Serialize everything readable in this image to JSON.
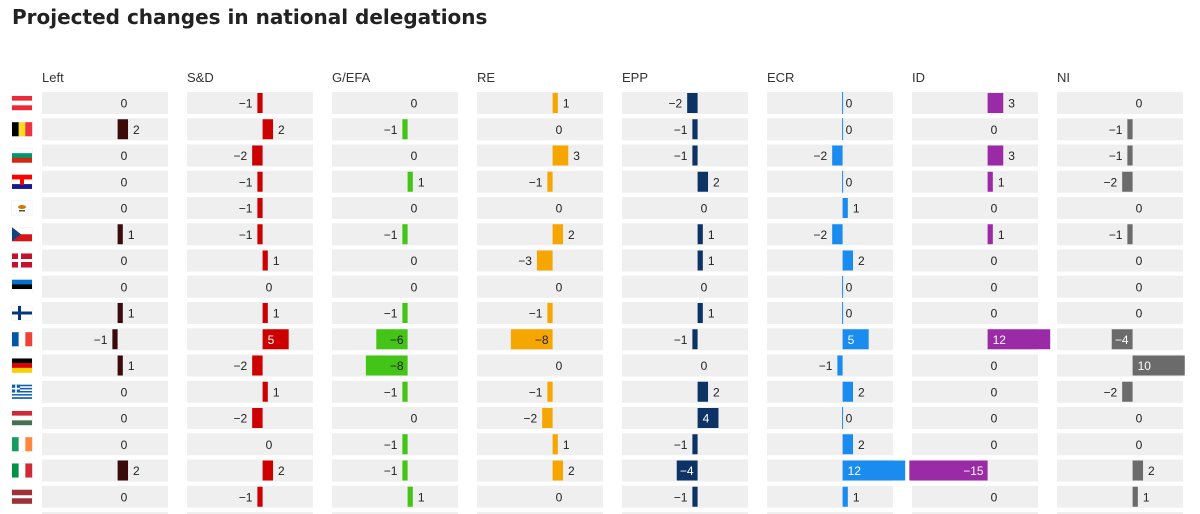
{
  "title": "Projected changes in national delegations",
  "chart_data": {
    "type": "bar",
    "title": "Projected changes in national delegations",
    "groups": [
      "Left",
      "S&D",
      "G/EFA",
      "RE",
      "EPP",
      "ECR",
      "ID",
      "NI"
    ],
    "group_colors": [
      "#3b0a0a",
      "#cc0000",
      "#44c416",
      "#f5a600",
      "#0d3366",
      "#1a8cf0",
      "#9b2aa6",
      "#6b6b6b"
    ],
    "countries": [
      "Austria",
      "Belgium",
      "Bulgaria",
      "Croatia",
      "Cyprus",
      "Czechia",
      "Denmark",
      "Estonia",
      "Finland",
      "France",
      "Germany",
      "Greece",
      "Hungary",
      "Ireland",
      "Italy",
      "Latvia"
    ],
    "values": [
      [
        0,
        -1,
        0,
        1,
        -2,
        0,
        3,
        0
      ],
      [
        2,
        2,
        -1,
        0,
        -1,
        0,
        0,
        -1
      ],
      [
        0,
        -2,
        0,
        3,
        -1,
        -2,
        3,
        -1
      ],
      [
        0,
        -1,
        1,
        -1,
        2,
        0,
        1,
        -2
      ],
      [
        0,
        -1,
        0,
        0,
        0,
        1,
        0,
        0
      ],
      [
        1,
        -1,
        -1,
        2,
        1,
        -2,
        1,
        -1
      ],
      [
        0,
        1,
        0,
        -3,
        1,
        2,
        0,
        0
      ],
      [
        0,
        0,
        0,
        0,
        0,
        0,
        0,
        0
      ],
      [
        1,
        1,
        -1,
        -1,
        1,
        0,
        0,
        0
      ],
      [
        -1,
        5,
        -6,
        -8,
        -1,
        5,
        12,
        -4
      ],
      [
        1,
        -2,
        -8,
        0,
        0,
        -1,
        0,
        10
      ],
      [
        0,
        1,
        -1,
        -1,
        2,
        2,
        0,
        -2
      ],
      [
        0,
        -2,
        0,
        -2,
        4,
        0,
        0,
        0
      ],
      [
        0,
        0,
        -1,
        1,
        -1,
        2,
        0,
        0
      ],
      [
        2,
        2,
        -1,
        2,
        -4,
        12,
        -15,
        2
      ],
      [
        0,
        -1,
        1,
        0,
        -1,
        1,
        0,
        1
      ]
    ],
    "labels": [
      [
        "0",
        "−1",
        "0",
        "1",
        "−2",
        "0",
        "3",
        "0"
      ],
      [
        "2",
        "2",
        "−1",
        "0",
        "−1",
        "0",
        "0",
        "−1"
      ],
      [
        "0",
        "−2",
        "0",
        "3",
        "−1",
        "−2",
        "3",
        "−1"
      ],
      [
        "0",
        "−1",
        "1",
        "−1",
        "2",
        "0",
        "1",
        "−2"
      ],
      [
        "0",
        "−1",
        "0",
        "0",
        "0",
        "1",
        "0",
        "0"
      ],
      [
        "1",
        "−1",
        "−1",
        "2",
        "1",
        "−2",
        "1",
        "−1"
      ],
      [
        "0",
        "1",
        "0",
        "−3",
        "1",
        "2",
        "0",
        "0"
      ],
      [
        "0",
        "0",
        "0",
        "0",
        "0",
        "0",
        "0",
        "0"
      ],
      [
        "1",
        "1",
        "−1",
        "−1",
        "1",
        "0",
        "0",
        "0"
      ],
      [
        "−1",
        "5",
        "−6",
        "−8",
        "−1",
        "5",
        "12",
        "−4"
      ],
      [
        "1",
        "−2",
        "−8",
        "0",
        "0",
        "−1",
        "0",
        "10"
      ],
      [
        "0",
        "1",
        "−1",
        "−1",
        "2",
        "2",
        "0",
        "−2"
      ],
      [
        "0",
        "−2",
        "0",
        "−2",
        "4",
        "0",
        "0",
        "0"
      ],
      [
        "0",
        "0",
        "−1",
        "1",
        "−1",
        "2",
        "0",
        "0"
      ],
      [
        "2",
        "2",
        "−1",
        "2",
        "−4",
        "12",
        "−15",
        "2"
      ],
      [
        "0",
        "−1",
        "1",
        "0",
        "−1",
        "1",
        "0",
        "1"
      ]
    ],
    "flags": [
      {
        "type": "h",
        "colors": [
          "#ed2939",
          "#ffffff",
          "#ed2939"
        ]
      },
      {
        "type": "v",
        "colors": [
          "#000000",
          "#fdda24",
          "#ef3340"
        ]
      },
      {
        "type": "h",
        "colors": [
          "#ffffff",
          "#00966e",
          "#d62612"
        ]
      },
      {
        "type": "h",
        "colors": [
          "#ff0000",
          "#ffffff",
          "#171796"
        ],
        "emblem": "#ff0000"
      },
      {
        "type": "cyprus",
        "colors": [
          "#ffffff",
          "#d57800",
          "#4e5b31"
        ]
      },
      {
        "type": "czech",
        "colors": [
          "#ffffff",
          "#d7141a",
          "#11457e"
        ]
      },
      {
        "type": "nordic",
        "colors": [
          "#c8102e",
          "#ffffff"
        ]
      },
      {
        "type": "h",
        "colors": [
          "#0072ce",
          "#000000",
          "#ffffff"
        ]
      },
      {
        "type": "nordic",
        "colors": [
          "#ffffff",
          "#003580"
        ]
      },
      {
        "type": "v",
        "colors": [
          "#0055a4",
          "#ffffff",
          "#ef4135"
        ]
      },
      {
        "type": "h",
        "colors": [
          "#000000",
          "#dd0000",
          "#ffce00"
        ]
      },
      {
        "type": "greece",
        "colors": [
          "#0d5eaf",
          "#ffffff"
        ]
      },
      {
        "type": "h",
        "colors": [
          "#ce2939",
          "#ffffff",
          "#477050"
        ]
      },
      {
        "type": "v",
        "colors": [
          "#169b62",
          "#ffffff",
          "#ff883e"
        ]
      },
      {
        "type": "v",
        "colors": [
          "#009246",
          "#ffffff",
          "#ce2b37"
        ]
      },
      {
        "type": "latvia",
        "colors": [
          "#9e3039",
          "#ffffff"
        ]
      }
    ],
    "value_range": [
      -15,
      15
    ]
  }
}
